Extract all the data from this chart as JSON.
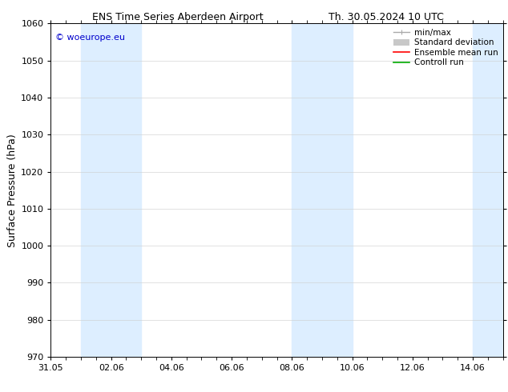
{
  "title_left": "ENS Time Series Aberdeen Airport",
  "title_right": "Th. 30.05.2024 10 UTC",
  "ylabel": "Surface Pressure (hPa)",
  "ylim": [
    970,
    1060
  ],
  "yticks": [
    970,
    980,
    990,
    1000,
    1010,
    1020,
    1030,
    1040,
    1050,
    1060
  ],
  "xlim": [
    0,
    15
  ],
  "x_tick_labels": [
    "31.05",
    "02.06",
    "04.06",
    "06.06",
    "08.06",
    "10.06",
    "12.06",
    "14.06"
  ],
  "x_tick_positions": [
    0,
    2,
    4,
    6,
    8,
    10,
    12,
    14
  ],
  "shaded_regions": [
    {
      "start": 1,
      "end": 3
    },
    {
      "start": 8,
      "end": 10
    },
    {
      "start": 14,
      "end": 15
    }
  ],
  "shade_color": "#ddeeff",
  "background_color": "#ffffff",
  "watermark_text": "© woeurope.eu",
  "watermark_color": "#0000cc",
  "legend_items": [
    {
      "label": "min/max"
    },
    {
      "label": "Standard deviation"
    },
    {
      "label": "Ensemble mean run"
    },
    {
      "label": "Controll run"
    }
  ],
  "legend_colors": [
    "#aaaaaa",
    "#c8c8c8",
    "#ff0000",
    "#00aa00"
  ],
  "grid_color": "#cccccc",
  "tick_fontsize": 8,
  "label_fontsize": 9,
  "title_fontsize": 9,
  "legend_fontsize": 7.5
}
